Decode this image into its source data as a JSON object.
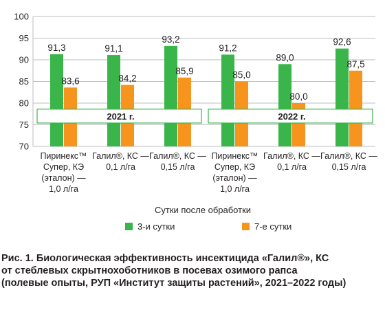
{
  "chart_data": {
    "type": "bar",
    "categories": [
      [
        "Пиринекс™",
        "Супер, КЭ",
        "(эталон) —",
        "1,0 л/га"
      ],
      [
        "Галил®, КС —",
        "0,1 л/га"
      ],
      [
        "Галил®, КС —",
        "0,15 л/га"
      ],
      [
        "Пиринекс™",
        "Супер, КЭ",
        "(эталон) —",
        "1,0 л/га"
      ],
      [
        "Галил®, КС —",
        "0,1 л/га"
      ],
      [
        "Галил®, КС —",
        "0,15 л/га"
      ]
    ],
    "series": [
      {
        "name": "3-и сутки",
        "color": "#39b54a",
        "values": [
          91.3,
          91.1,
          93.2,
          91.2,
          89.0,
          92.6
        ],
        "labels": [
          "91,3",
          "91,1",
          "93,2",
          "91,2",
          "89,0",
          "92,6"
        ]
      },
      {
        "name": "7-е сутки",
        "color": "#f7941d",
        "values": [
          83.6,
          84.2,
          85.9,
          85.0,
          80.0,
          87.5
        ],
        "labels": [
          "83,6",
          "84,2",
          "85,9",
          "85,0",
          "80,0",
          "87,5"
        ]
      }
    ],
    "ylim": [
      70,
      100
    ],
    "yticks": [
      "70",
      "75",
      "80",
      "85",
      "90",
      "95",
      "100"
    ],
    "xlabel": "Сутки после обработки",
    "ylabel": "",
    "groups": [
      {
        "label": "2021 г.",
        "categories": [
          0,
          1,
          2
        ]
      },
      {
        "label": "2022 г.",
        "categories": [
          3,
          4,
          5
        ]
      }
    ],
    "grid": "horizontal",
    "legend_position": "bottom"
  },
  "caption": {
    "lines": [
      "Рис. 1. Биологическая эффективность инсектицида «Галил®», КС",
      "от стеблевых скрытнохоботников в посевах озимого рапса",
      "(полевые опыты, РУП «Институт защиты растений», 2021–2022 годы)"
    ]
  }
}
